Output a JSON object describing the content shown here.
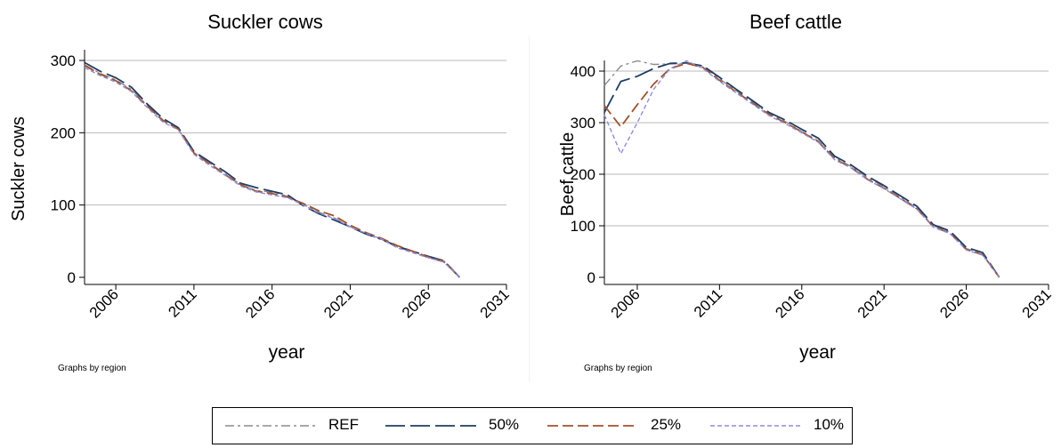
{
  "chart_data": [
    {
      "type": "line",
      "title": "Suckler cows",
      "xlabel": "year",
      "ylabel": "Suckler cows",
      "note": "Graphs by region",
      "xlim": [
        2004,
        2031
      ],
      "ylim": [
        0,
        300
      ],
      "xticks": [
        2006,
        2011,
        2016,
        2021,
        2026,
        2031
      ],
      "yticks": [
        0,
        100,
        200,
        300
      ],
      "grid": true,
      "x": [
        2004,
        2005,
        2006,
        2007,
        2008,
        2009,
        2010,
        2011,
        2012,
        2013,
        2014,
        2015,
        2016,
        2017,
        2018,
        2019,
        2020,
        2021,
        2022,
        2023,
        2024,
        2025,
        2026,
        2027,
        2028
      ],
      "series": [
        {
          "name": "REF",
          "values": [
            294,
            282,
            273,
            260,
            238,
            218,
            205,
            172,
            158,
            143,
            128,
            120,
            118,
            112,
            101,
            90,
            82,
            70,
            60,
            52,
            42,
            35,
            27,
            21,
            0
          ]
        },
        {
          "name": "50%",
          "values": [
            297,
            285,
            276,
            263,
            240,
            220,
            207,
            174,
            160,
            146,
            130,
            124,
            119,
            114,
            99,
            88,
            79,
            70,
            60,
            53,
            43,
            36,
            29,
            23,
            0
          ]
        },
        {
          "name": "25%",
          "values": [
            293,
            281,
            272,
            258,
            237,
            217,
            205,
            172,
            157,
            142,
            128,
            119,
            116,
            111,
            102,
            92,
            85,
            72,
            62,
            54,
            44,
            36,
            28,
            22,
            0
          ]
        },
        {
          "name": "10%",
          "values": [
            290,
            279,
            270,
            257,
            235,
            215,
            204,
            170,
            155,
            141,
            126,
            118,
            114,
            110,
            100,
            89,
            81,
            70,
            61,
            53,
            41,
            34,
            27,
            21,
            0
          ]
        }
      ]
    },
    {
      "type": "line",
      "title": "Beef cattle",
      "xlabel": "year",
      "ylabel": "Beef cattle",
      "note": "Graphs by region",
      "xlim": [
        2004,
        2031
      ],
      "ylim": [
        0,
        400
      ],
      "xticks": [
        2006,
        2011,
        2016,
        2021,
        2026,
        2031
      ],
      "yticks": [
        0,
        100,
        200,
        300,
        400
      ],
      "grid": true,
      "x": [
        2004,
        2005,
        2006,
        2007,
        2008,
        2009,
        2010,
        2011,
        2012,
        2013,
        2014,
        2015,
        2016,
        2017,
        2018,
        2019,
        2020,
        2021,
        2022,
        2023,
        2024,
        2025,
        2026,
        2027,
        2028
      ],
      "series": [
        {
          "name": "REF",
          "values": [
            372,
            410,
            420,
            413,
            414,
            415,
            410,
            385,
            362,
            340,
            318,
            302,
            283,
            265,
            232,
            215,
            193,
            176,
            155,
            135,
            100,
            88,
            56,
            45,
            0
          ]
        },
        {
          "name": "50%",
          "values": [
            320,
            380,
            390,
            405,
            415,
            416,
            410,
            388,
            365,
            343,
            320,
            305,
            287,
            270,
            235,
            218,
            196,
            178,
            158,
            138,
            102,
            90,
            58,
            48,
            0
          ]
        },
        {
          "name": "25%",
          "values": [
            333,
            292,
            335,
            375,
            405,
            415,
            407,
            382,
            360,
            338,
            316,
            300,
            282,
            263,
            230,
            213,
            190,
            173,
            153,
            133,
            98,
            86,
            54,
            44,
            0
          ]
        },
        {
          "name": "10%",
          "values": [
            315,
            240,
            300,
            365,
            405,
            420,
            405,
            380,
            358,
            336,
            314,
            298,
            280,
            262,
            228,
            212,
            189,
            172,
            152,
            132,
            97,
            85,
            53,
            43,
            0
          ]
        }
      ]
    }
  ],
  "legend": {
    "items": [
      {
        "label": "REF",
        "color": "#8c8c8c"
      },
      {
        "label": "50%",
        "color": "#1f3e63"
      },
      {
        "label": "25%",
        "color": "#a3522b"
      },
      {
        "label": "10%",
        "color": "#8c8ce6"
      }
    ]
  }
}
